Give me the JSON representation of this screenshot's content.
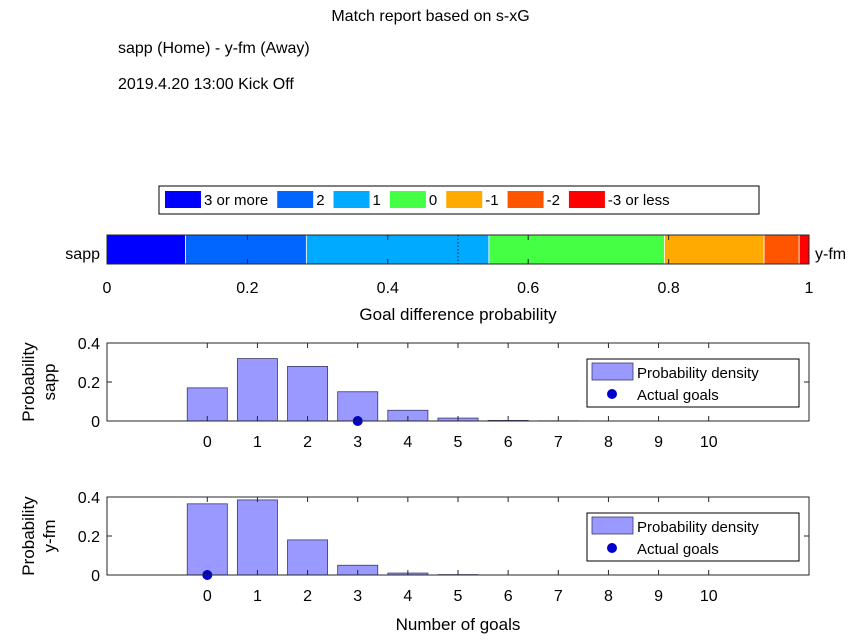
{
  "header": {
    "title": "Match report based on s-xG",
    "teams": "sapp (Home) - y-fm (Away)",
    "kickoff": "2019.4.20 13:00 Kick Off"
  },
  "chart_data": [
    {
      "type": "bar",
      "orientation": "horizontal-stacked",
      "xlabel": "Goal difference probability",
      "xlim": [
        0,
        1
      ],
      "xticks": [
        "0",
        "0.2",
        "0.4",
        "0.6",
        "0.8",
        "1"
      ],
      "left_label": "sapp",
      "right_label": "y-fm",
      "midline": 0.5,
      "legend": "top",
      "grid": false,
      "segments": [
        {
          "name": "3 or more",
          "value": 0.112,
          "color": "#0000ff"
        },
        {
          "name": "2",
          "value": 0.172,
          "color": "#0066ff"
        },
        {
          "name": "1",
          "value": 0.26,
          "color": "#00aaff"
        },
        {
          "name": "0",
          "value": 0.25,
          "color": "#44ff44"
        },
        {
          "name": "-1",
          "value": 0.142,
          "color": "#ffaa00"
        },
        {
          "name": "-2",
          "value": 0.05,
          "color": "#ff5500"
        },
        {
          "name": "-3 or less",
          "value": 0.014,
          "color": "#ff0000"
        }
      ]
    },
    {
      "type": "bar",
      "ylabel": [
        "Probability",
        "sapp"
      ],
      "xlabel": "",
      "categories": [
        "0",
        "1",
        "2",
        "3",
        "4",
        "5",
        "6",
        "7",
        "8",
        "9",
        "10"
      ],
      "xlim": [
        -2,
        12
      ],
      "ylim": [
        0,
        0.4
      ],
      "yticks": [
        "0",
        "0.2",
        "0.4"
      ],
      "grid": false,
      "legend": "right",
      "series": [
        {
          "name": "Probability density",
          "type": "bar",
          "color": "#9999ff",
          "values": [
            0.17,
            0.32,
            0.28,
            0.15,
            0.055,
            0.015,
            0.003,
            0.001,
            0.0,
            0.0,
            0.0
          ]
        },
        {
          "name": "Actual goals",
          "type": "scatter",
          "color": "#0000cc",
          "x": [
            3
          ],
          "y": [
            0
          ]
        }
      ]
    },
    {
      "type": "bar",
      "ylabel": [
        "Probability",
        "y-fm"
      ],
      "xlabel": "Number of goals",
      "categories": [
        "0",
        "1",
        "2",
        "3",
        "4",
        "5",
        "6",
        "7",
        "8",
        "9",
        "10"
      ],
      "xlim": [
        -2,
        12
      ],
      "ylim": [
        0,
        0.4
      ],
      "yticks": [
        "0",
        "0.2",
        "0.4"
      ],
      "grid": false,
      "legend": "right",
      "series": [
        {
          "name": "Probability density",
          "type": "bar",
          "color": "#9999ff",
          "values": [
            0.365,
            0.385,
            0.18,
            0.05,
            0.01,
            0.002,
            0.0,
            0.0,
            0.0,
            0.0,
            0.0
          ]
        },
        {
          "name": "Actual goals",
          "type": "scatter",
          "color": "#0000cc",
          "x": [
            0
          ],
          "y": [
            0
          ]
        }
      ]
    }
  ]
}
